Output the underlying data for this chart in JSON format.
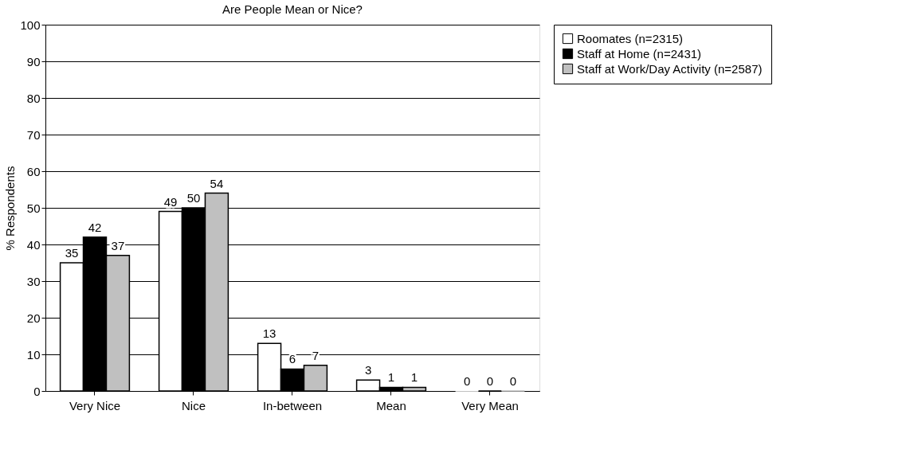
{
  "chart_data": {
    "type": "bar",
    "title": "Are People Mean or Nice?",
    "ylabel": "% Respondents",
    "categories": [
      "Very Nice",
      "Nice",
      "In-between",
      "Mean",
      "Very Mean"
    ],
    "series": [
      {
        "name": "Roomates (n=2315)",
        "color": "#ffffff",
        "values": [
          35,
          49,
          13,
          3,
          0
        ]
      },
      {
        "name": "Staff at Home (n=2431)",
        "color": "#000000",
        "values": [
          42,
          50,
          6,
          1,
          0
        ]
      },
      {
        "name": "Staff at Work/Day Activity (n=2587)",
        "color": "#c0c0c0",
        "values": [
          37,
          54,
          7,
          1,
          0
        ]
      }
    ],
    "ylim": [
      0,
      100
    ],
    "yticks": [
      0,
      10,
      20,
      30,
      40,
      50,
      60,
      70,
      80,
      90,
      100
    ],
    "grid": "y",
    "legend": "right",
    "data_labels": true
  }
}
